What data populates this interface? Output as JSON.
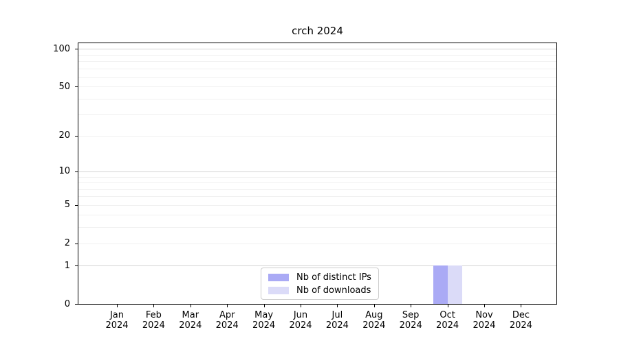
{
  "chart_data": {
    "type": "bar",
    "title": "crch 2024",
    "categories": [
      "Jan",
      "Feb",
      "Mar",
      "Apr",
      "May",
      "Jun",
      "Jul",
      "Aug",
      "Sep",
      "Oct",
      "Nov",
      "Dec"
    ],
    "category_year": "2024",
    "series": [
      {
        "name": "Nb of distinct IPs",
        "color": "#aaaaf5",
        "values": [
          0,
          0,
          0,
          0,
          0,
          0,
          0,
          0,
          0,
          1,
          0,
          0
        ]
      },
      {
        "name": "Nb of downloads",
        "color": "#dbdbf8",
        "values": [
          0,
          0,
          0,
          0,
          0,
          0,
          0,
          0,
          0,
          1,
          0,
          0
        ]
      }
    ],
    "xlabel": "",
    "ylabel": "",
    "y_axis": {
      "scale": "log1p",
      "ticks": [
        0,
        1,
        2,
        5,
        10,
        20,
        50,
        100
      ],
      "range": [
        0,
        111
      ],
      "major_gridlines": [
        1,
        10,
        100
      ],
      "minor_gridlines": [
        2,
        3,
        4,
        5,
        6,
        7,
        8,
        9,
        20,
        30,
        40,
        50,
        60,
        70,
        80,
        90
      ]
    },
    "grid": true,
    "legend": {
      "position": "bottom-center-inside",
      "entries": [
        "Nb of distinct IPs",
        "Nb of downloads"
      ]
    }
  },
  "colors": {
    "bar_distinct_ips": "#aaaaf5",
    "bar_downloads": "#dbdbf8",
    "major_gridline": "#d3d3d3",
    "minor_gridline": "#f0f0f0",
    "axis": "#000000",
    "legend_border": "#cccccc",
    "background": "#ffffff"
  }
}
